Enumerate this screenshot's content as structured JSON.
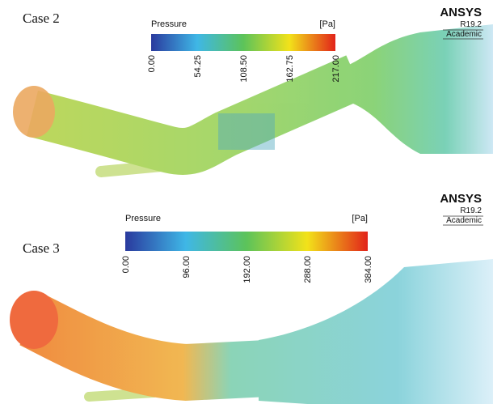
{
  "panels": [
    {
      "case_label": "Case 2",
      "legend": {
        "title": "Pressure",
        "unit": "[Pa]",
        "ticks": [
          "0.00",
          "54.25",
          "108.50",
          "162.75",
          "217.00"
        ]
      },
      "logo": {
        "brand": "ANSYS",
        "version": "R19.2",
        "license": "Academic"
      }
    },
    {
      "case_label": "Case 3",
      "legend": {
        "title": "Pressure",
        "unit": "[Pa]",
        "ticks": [
          "0.00",
          "96.00",
          "192.00",
          "288.00",
          "384.00"
        ]
      },
      "logo": {
        "brand": "ANSYS",
        "version": "R19.2",
        "license": "Academic"
      }
    }
  ]
}
